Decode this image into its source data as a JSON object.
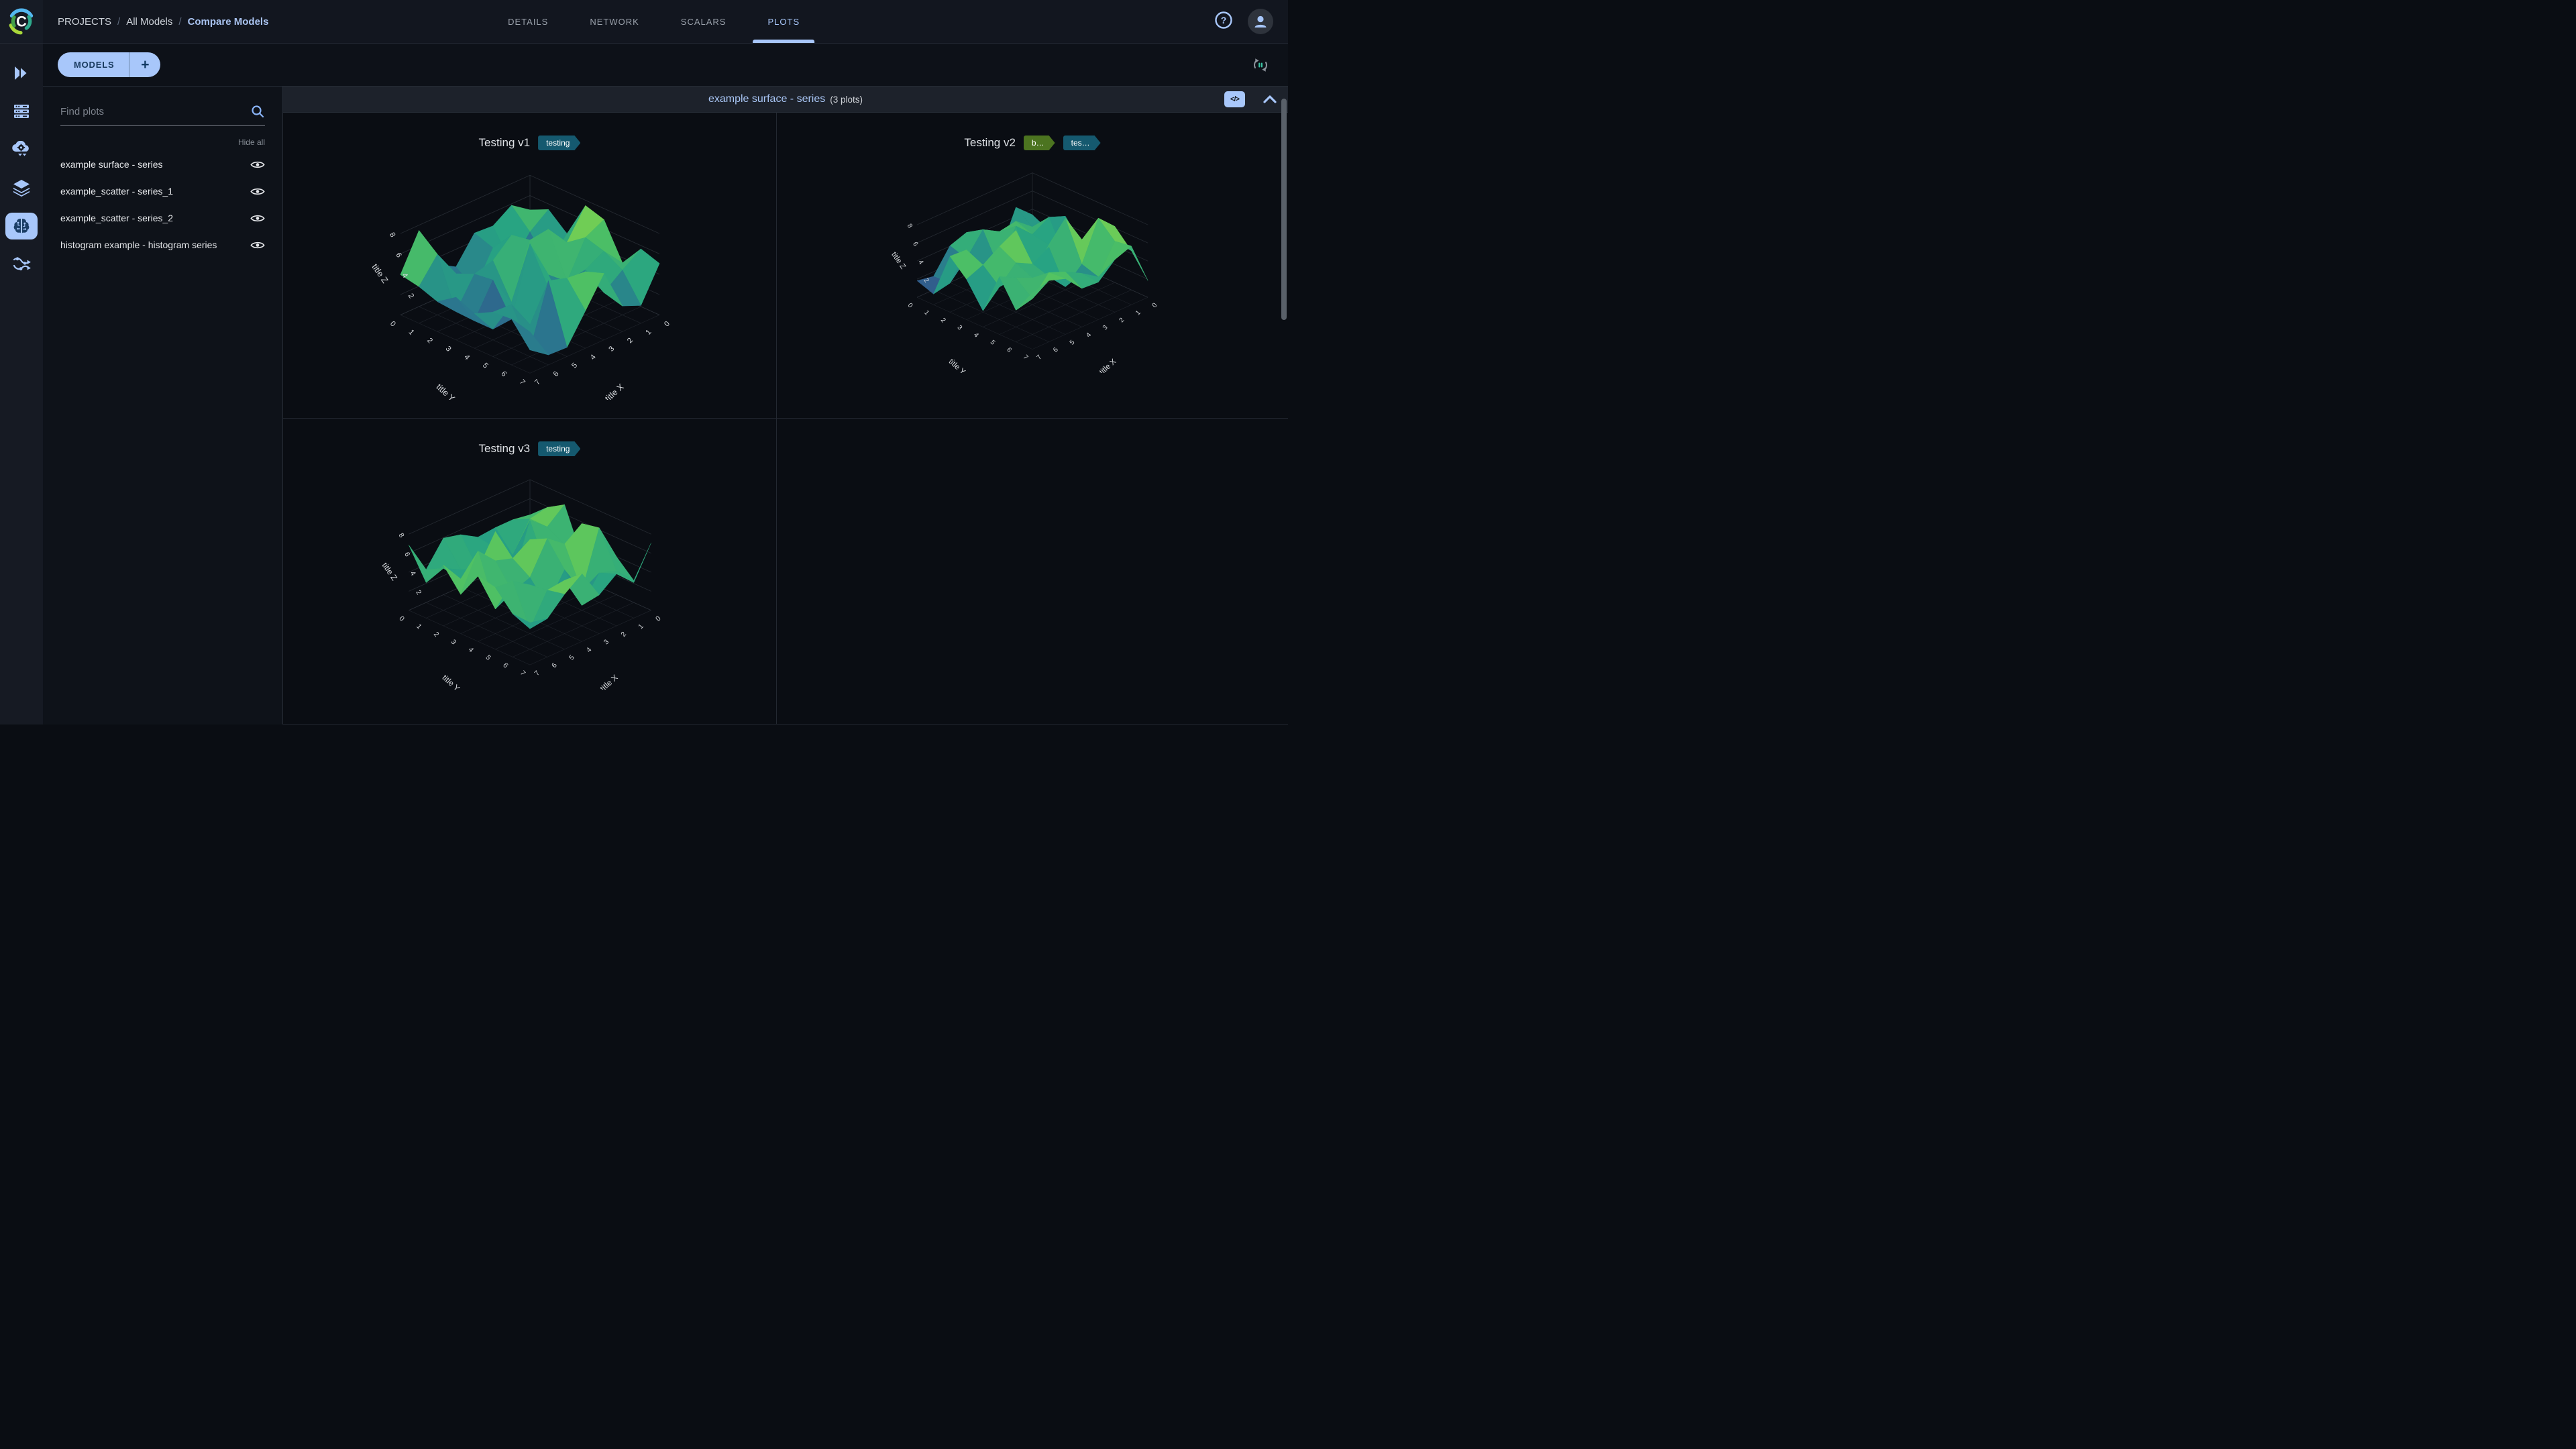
{
  "topbar": {
    "breadcrumb": [
      "PROJECTS",
      "All Models",
      "Compare Models"
    ],
    "tabs": [
      "DETAILS",
      "NETWORK",
      "SCALARS",
      "PLOTS"
    ],
    "active_tab": "PLOTS",
    "icons": [
      "help-icon",
      "user-avatar-icon"
    ]
  },
  "toolbar": {
    "models_label": "MODELS",
    "add_label": "+",
    "icons": [
      "auto-refresh-pause-icon"
    ]
  },
  "sidebar": {
    "icons": [
      "projects-icon",
      "workers-icon",
      "serving-icon",
      "datasets-icon",
      "models-icon",
      "pipelines-icon"
    ],
    "active": "models-icon"
  },
  "left_panel": {
    "search_placeholder": "Find plots",
    "hide_all_label": "Hide all",
    "items": [
      {
        "label": "example surface - series",
        "visible": true
      },
      {
        "label": "example_scatter - series_1",
        "visible": true
      },
      {
        "label": "example_scatter - series_2",
        "visible": true
      },
      {
        "label": "histogram example - histogram series",
        "visible": true
      }
    ]
  },
  "section": {
    "title": "example surface - series",
    "count": "(3 plots)"
  },
  "plots": [
    {
      "title": "Testing v1",
      "badges": [
        {
          "label": "testing",
          "color": "#15596f"
        }
      ]
    },
    {
      "title": "Testing v2",
      "badges": [
        {
          "label": "b…",
          "color": "#4c7420"
        },
        {
          "label": "tes…",
          "color": "#15596f"
        }
      ]
    },
    {
      "title": "Testing v3",
      "badges": [
        {
          "label": "testing",
          "color": "#15596f"
        }
      ]
    }
  ],
  "chart_data": [
    {
      "type": "surface",
      "title": "Testing v1",
      "xlabel": "title X",
      "ylabel": "title Y",
      "zlabel": "title Z",
      "x_ticks": [
        0,
        1,
        2,
        3,
        4,
        5,
        6,
        7
      ],
      "y_ticks": [
        0,
        1,
        2,
        3,
        4,
        5,
        6,
        7
      ],
      "z_ticks": [
        2,
        4,
        6,
        8
      ],
      "x_range": [
        0,
        7
      ],
      "y_range": [
        0,
        7
      ],
      "z_range": [
        0,
        8
      ],
      "colorscale": "viridis"
    },
    {
      "type": "surface",
      "title": "Testing v2",
      "xlabel": "title X",
      "ylabel": "title Y",
      "zlabel": "title Z",
      "x_ticks": [
        0,
        1,
        2,
        3,
        4,
        5,
        6,
        7
      ],
      "y_ticks": [
        0,
        1,
        2,
        3,
        4,
        5,
        6,
        7
      ],
      "z_ticks": [
        2,
        4,
        6,
        8
      ],
      "x_range": [
        0,
        7
      ],
      "y_range": [
        0,
        7
      ],
      "z_range": [
        0,
        8
      ],
      "colorscale": "viridis"
    },
    {
      "type": "surface",
      "title": "Testing v3",
      "xlabel": "title X",
      "ylabel": "title Y",
      "zlabel": "title Z",
      "x_ticks": [
        0,
        1,
        2,
        3,
        4,
        5,
        6,
        7
      ],
      "y_ticks": [
        0,
        1,
        2,
        3,
        4,
        5,
        6,
        7
      ],
      "z_ticks": [
        2,
        4,
        6,
        8
      ],
      "x_range": [
        0,
        7
      ],
      "y_range": [
        0,
        7
      ],
      "z_range": [
        0,
        8
      ],
      "colorscale": "viridis"
    }
  ],
  "colors": {
    "accent": "#a8c7fa",
    "badge_teal": "#15596f",
    "badge_green": "#4c7420",
    "surface_low": "#3b2a68",
    "surface_mid": "#27a383",
    "surface_high": "#e8e337"
  }
}
